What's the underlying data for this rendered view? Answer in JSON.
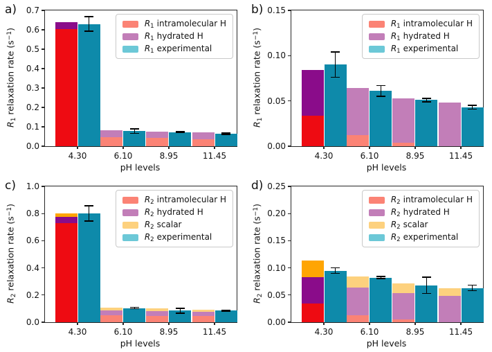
{
  "figure": {
    "background": "#ffffff",
    "xlabel": "pH levels",
    "categories": [
      "4.30",
      "6.10",
      "8.95",
      "11.45"
    ],
    "colors": {
      "salmon": "#fb8375",
      "red": "#ee0b12",
      "orchid": "#c27eb8",
      "purple": "#8a0c8a",
      "light_orange": "#fdd17e",
      "orange": "#ffa503",
      "teal_bar": "#0e8aaa",
      "teal_legend": "#6cc8d7",
      "error_bar": "#000000",
      "spine": "#262626"
    }
  },
  "chart_data": [
    {
      "id": "a",
      "label": "a)",
      "type": "bar",
      "ylabel": {
        "sym": "R",
        "sub": "1",
        "mid": " relaxation rate (s",
        "sup": "−1",
        "end": ")"
      },
      "xlabel": "pH levels",
      "ylim": [
        0,
        0.7
      ],
      "yticks": [
        "0.0",
        "0.1",
        "0.2",
        "0.3",
        "0.4",
        "0.5",
        "0.6",
        "0.7"
      ],
      "grid": false,
      "legend_position": "upper right",
      "legend": [
        {
          "sym": "R",
          "sub": "1",
          "text": "intramolecular H",
          "color": "intramolecular"
        },
        {
          "sym": "R",
          "sub": "1",
          "text": "hydrated H",
          "color": "hydrated"
        },
        {
          "sym": "R",
          "sub": "1",
          "text": "experimental",
          "color": "experimental"
        }
      ],
      "series": {
        "intramolecular": [
          0.605,
          0.048,
          0.042,
          0.036
        ],
        "hydrated": [
          0.035,
          0.033,
          0.033,
          0.036
        ],
        "scalar": null,
        "experimental": [
          0.63,
          0.078,
          0.072,
          0.064
        ],
        "experimental_err": [
          0.038,
          0.012,
          0.003,
          0.004
        ]
      }
    },
    {
      "id": "b",
      "label": "b)",
      "type": "bar",
      "ylabel": {
        "sym": "R",
        "sub": "1",
        "mid": " relaxation rate (s",
        "sup": "−1",
        "end": ")"
      },
      "xlabel": "pH levels",
      "ylim": [
        0,
        0.15
      ],
      "yticks": [
        "0.00",
        "0.05",
        "0.10",
        "0.15"
      ],
      "grid": false,
      "legend_position": "upper right",
      "legend": [
        {
          "sym": "R",
          "sub": "1",
          "text": "intramolecular H",
          "color": "intramolecular"
        },
        {
          "sym": "R",
          "sub": "1",
          "text": "hydrated H",
          "color": "hydrated"
        },
        {
          "sym": "R",
          "sub": "1",
          "text": "experimental",
          "color": "experimental"
        }
      ],
      "series": {
        "intramolecular": [
          0.034,
          0.012,
          0.004,
          0.0
        ],
        "hydrated": [
          0.05,
          0.052,
          0.049,
          0.048
        ],
        "scalar": null,
        "experimental": [
          0.09,
          0.061,
          0.051,
          0.043
        ],
        "experimental_err": [
          0.014,
          0.006,
          0.002,
          0.002
        ]
      }
    },
    {
      "id": "c",
      "label": "c)",
      "type": "bar",
      "ylabel": {
        "sym": "R",
        "sub": "2",
        "mid": " relaxation rate (s",
        "sup": "−1",
        "end": ")"
      },
      "xlabel": "pH levels",
      "ylim": [
        0,
        1.0
      ],
      "yticks": [
        "0.0",
        "0.2",
        "0.4",
        "0.6",
        "0.8",
        "1.0"
      ],
      "grid": false,
      "legend_position": "upper right",
      "legend": [
        {
          "sym": "R",
          "sub": "2",
          "text": "intramolecular H",
          "color": "intramolecular"
        },
        {
          "sym": "R",
          "sub": "2",
          "text": "hydrated H",
          "color": "hydrated"
        },
        {
          "sym": "R",
          "sub": "2",
          "text": "scalar",
          "color": "scalar"
        },
        {
          "sym": "R",
          "sub": "2",
          "text": "experimental",
          "color": "experimental"
        }
      ],
      "series": {
        "intramolecular": [
          0.728,
          0.051,
          0.047,
          0.044
        ],
        "hydrated": [
          0.047,
          0.037,
          0.035,
          0.033
        ],
        "scalar": [
          0.025,
          0.021,
          0.018,
          0.015
        ],
        "experimental": [
          0.8,
          0.104,
          0.085,
          0.085
        ],
        "experimental_err": [
          0.056,
          0.005,
          0.018,
          0.004
        ]
      }
    },
    {
      "id": "d",
      "label": "d)",
      "type": "bar",
      "ylabel": {
        "sym": "R",
        "sub": "2",
        "mid": " relaxation rate (s",
        "sup": "−1",
        "end": ")"
      },
      "xlabel": "pH levels",
      "ylim": [
        0,
        0.25
      ],
      "yticks": [
        "0.00",
        "0.05",
        "0.10",
        "0.15",
        "0.20",
        "0.25"
      ],
      "grid": false,
      "legend_position": "upper right",
      "legend": [
        {
          "sym": "R",
          "sub": "2",
          "text": "intramolecular H",
          "color": "intramolecular"
        },
        {
          "sym": "R",
          "sub": "2",
          "text": "hydrated H",
          "color": "hydrated"
        },
        {
          "sym": "R",
          "sub": "2",
          "text": "scalar",
          "color": "scalar"
        },
        {
          "sym": "R",
          "sub": "2",
          "text": "experimental",
          "color": "experimental"
        }
      ],
      "series": {
        "intramolecular": [
          0.034,
          0.013,
          0.005,
          0.0
        ],
        "hydrated": [
          0.049,
          0.051,
          0.049,
          0.048
        ],
        "scalar": [
          0.03,
          0.02,
          0.017,
          0.014
        ],
        "experimental": [
          0.095,
          0.082,
          0.068,
          0.063
        ],
        "experimental_err": [
          0.005,
          0.002,
          0.015,
          0.005
        ]
      }
    }
  ]
}
